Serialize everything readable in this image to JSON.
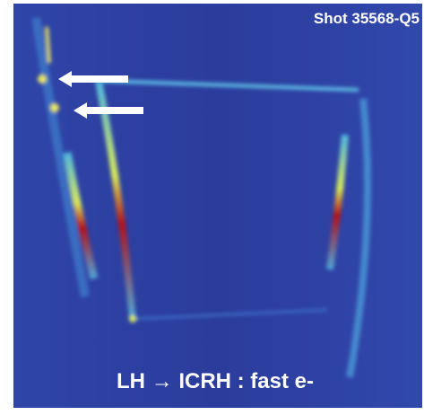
{
  "image": {
    "label": "Shot 35568-Q5",
    "caption": "LH → ICRH : fast e-"
  }
}
